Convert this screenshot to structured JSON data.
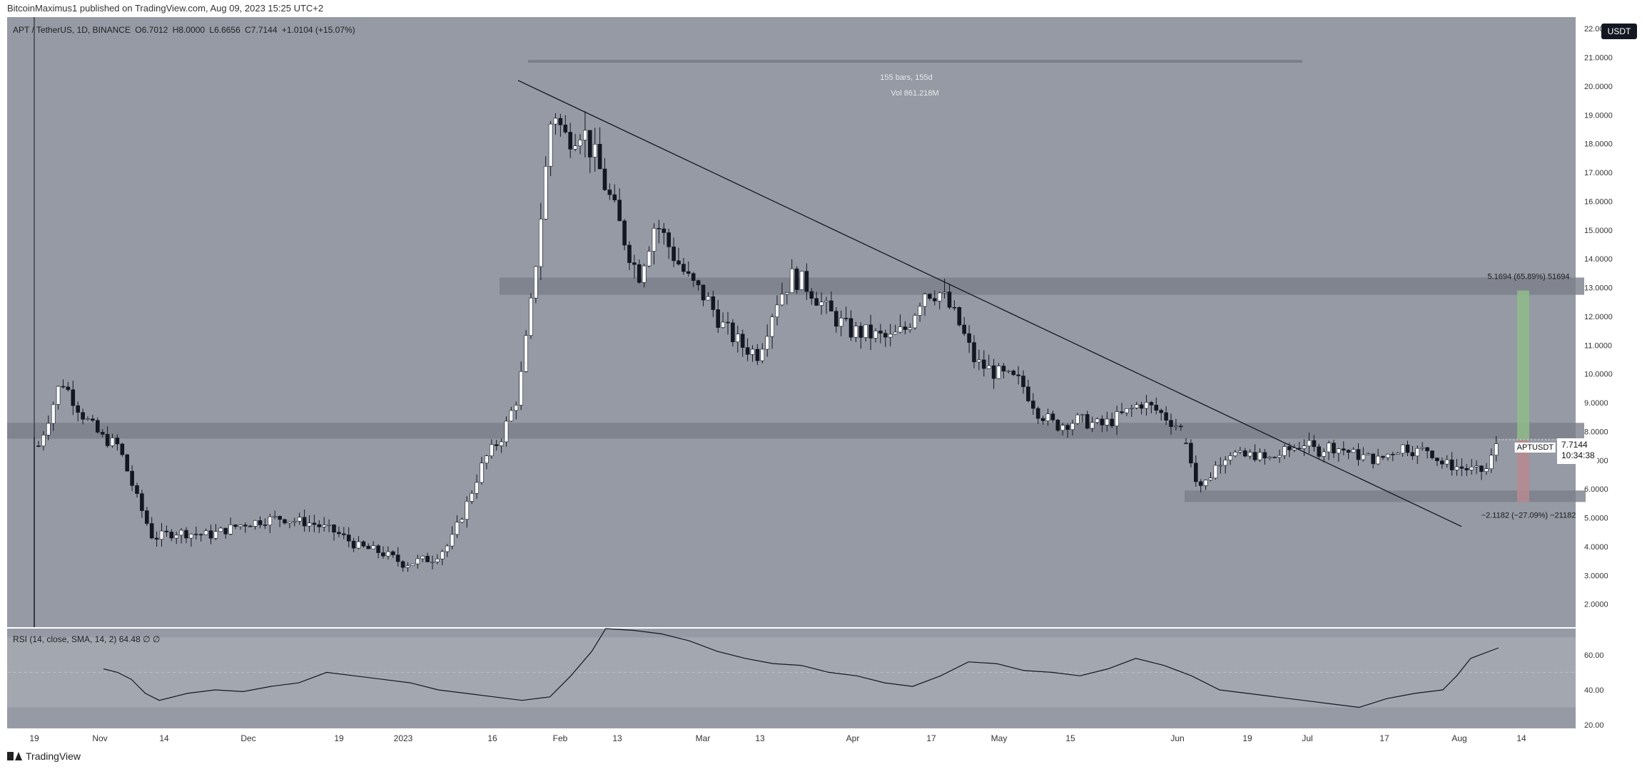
{
  "header": {
    "publisher": "BitcoinMaximus1 published on TradingView.com, Aug 09, 2023 15:25 UTC+2"
  },
  "symbol": {
    "name": "APT / TetherUS, 1D, BINANCE",
    "open": "O6.7012",
    "high": "H8.0000",
    "low": "L6.6656",
    "close": "C7.7144",
    "change": "+1.0104 (+15.07%)"
  },
  "currency_badge": "USDT",
  "price_label": {
    "pair": "APTUSDT",
    "price": "7.7144",
    "countdown": "10:34:38"
  },
  "measure": {
    "bars": "155 bars, 155d",
    "vol": "Vol 861.218M"
  },
  "projection": {
    "up": "5.1694 (65.89%) 51694",
    "down": "−2.1182 (−27.09%) −21182"
  },
  "rsi": {
    "label": "RSI (14, close, SMA, 14, 2)",
    "value": "64.48",
    "extra": "∅ ∅"
  },
  "footer": {
    "brand": "TradingView"
  },
  "colors": {
    "background": "#959aa4",
    "bull": "#ffffff",
    "bear": "#131722",
    "zone": "#7a7e88",
    "up_box": "#8fbb8a",
    "down_box": "#b98a90"
  },
  "chart_data": {
    "type": "candlestick",
    "title": "APT / TetherUS, 1D, BINANCE",
    "y_ticks": [
      "22.0000",
      "21.0000",
      "20.0000",
      "19.0000",
      "18.0000",
      "17.0000",
      "16.0000",
      "15.0000",
      "14.0000",
      "13.0000",
      "12.0000",
      "11.0000",
      "10.0000",
      "9.0000",
      "8.0000",
      "7.0000",
      "6.0000",
      "5.0000",
      "4.0000",
      "3.0000",
      "2.0000"
    ],
    "x_ticks": [
      "19",
      "Nov",
      "14",
      "Dec",
      "19",
      "2023",
      "16",
      "Feb",
      "13",
      "Mar",
      "13",
      "Apr",
      "17",
      "May",
      "15",
      "Jun",
      "19",
      "Jul",
      "17",
      "Aug",
      "14"
    ],
    "ylim": [
      1.2,
      22.4
    ],
    "rsi_ticks": [
      "60.00",
      "40.00",
      "20.00"
    ],
    "rsi_ylim": [
      18,
      75
    ],
    "resistance_zones": [
      [
        12.75,
        13.35
      ],
      [
        7.75,
        8.3
      ],
      [
        5.55,
        5.95
      ]
    ],
    "trendline": [
      [
        0,
        20.2
      ],
      [
        1,
        4.7
      ]
    ],
    "last_close": 7.7144,
    "projection_range": [
      5.55,
      7.71,
      12.9
    ],
    "price_path": [
      [
        0,
        7.5
      ],
      [
        0.02,
        9.8
      ],
      [
        0.04,
        8.5
      ],
      [
        0.055,
        7.8
      ],
      [
        0.07,
        7.5
      ],
      [
        0.085,
        5.8
      ],
      [
        0.1,
        4.3
      ],
      [
        0.12,
        4.5
      ],
      [
        0.15,
        4.4
      ],
      [
        0.18,
        4.8
      ],
      [
        0.21,
        5.0
      ],
      [
        0.24,
        4.8
      ],
      [
        0.26,
        4.5
      ],
      [
        0.28,
        4.0
      ],
      [
        0.3,
        3.8
      ],
      [
        0.32,
        3.4
      ],
      [
        0.345,
        3.6
      ],
      [
        0.36,
        4.1
      ],
      [
        0.375,
        5.5
      ],
      [
        0.39,
        7.0
      ],
      [
        0.405,
        7.8
      ],
      [
        0.42,
        9.3
      ],
      [
        0.43,
        12.0
      ],
      [
        0.445,
        17.5
      ],
      [
        0.45,
        19.4
      ],
      [
        0.46,
        18.2
      ],
      [
        0.475,
        18.6
      ],
      [
        0.49,
        17.2
      ],
      [
        0.51,
        15.0
      ],
      [
        0.525,
        13.4
      ],
      [
        0.54,
        15.3
      ],
      [
        0.555,
        14.2
      ],
      [
        0.57,
        13.2
      ],
      [
        0.585,
        12.6
      ],
      [
        0.6,
        11.6
      ],
      [
        0.615,
        11.0
      ],
      [
        0.63,
        10.7
      ],
      [
        0.645,
        12.5
      ],
      [
        0.66,
        13.4
      ],
      [
        0.675,
        13.0
      ],
      [
        0.69,
        12.2
      ],
      [
        0.71,
        11.5
      ],
      [
        0.725,
        11.4
      ],
      [
        0.745,
        11.2
      ],
      [
        0.76,
        11.6
      ],
      [
        0.775,
        12.9
      ],
      [
        0.79,
        12.8
      ],
      [
        0.805,
        11.8
      ],
      [
        0.82,
        10.4
      ],
      [
        0.84,
        10.0
      ],
      [
        0.86,
        9.7
      ],
      [
        0.875,
        8.7
      ],
      [
        0.89,
        8.2
      ],
      [
        0.91,
        8.4
      ],
      [
        0.93,
        8.2
      ],
      [
        0.95,
        8.6
      ],
      [
        0.965,
        9.0
      ],
      [
        0.98,
        8.7
      ],
      [
        1.0,
        8.1
      ]
    ],
    "price_path_2": [
      [
        0,
        7.6
      ],
      [
        0.04,
        6.1
      ],
      [
        0.07,
        6.3
      ],
      [
        0.1,
        6.9
      ],
      [
        0.14,
        7.3
      ],
      [
        0.18,
        7.1
      ],
      [
        0.22,
        7.2
      ],
      [
        0.26,
        7.0
      ],
      [
        0.3,
        7.2
      ],
      [
        0.34,
        7.4
      ],
      [
        0.38,
        7.6
      ],
      [
        0.42,
        7.3
      ],
      [
        0.46,
        7.5
      ],
      [
        0.5,
        7.4
      ],
      [
        0.54,
        7.2
      ],
      [
        0.58,
        7.1
      ],
      [
        0.62,
        7.0
      ],
      [
        0.66,
        7.3
      ],
      [
        0.7,
        7.5
      ],
      [
        0.74,
        7.3
      ],
      [
        0.78,
        7.4
      ],
      [
        0.82,
        6.9
      ],
      [
        0.86,
        6.8
      ],
      [
        0.9,
        6.7
      ],
      [
        0.94,
        6.6
      ],
      [
        0.97,
        6.7
      ],
      [
        1.0,
        7.7
      ]
    ],
    "rsi_path": [
      [
        0,
        52
      ],
      [
        0.01,
        50
      ],
      [
        0.02,
        46
      ],
      [
        0.03,
        38
      ],
      [
        0.04,
        34
      ],
      [
        0.06,
        38
      ],
      [
        0.08,
        40
      ],
      [
        0.1,
        39
      ],
      [
        0.12,
        42
      ],
      [
        0.14,
        44
      ],
      [
        0.16,
        50
      ],
      [
        0.18,
        48
      ],
      [
        0.2,
        46
      ],
      [
        0.22,
        44
      ],
      [
        0.24,
        40
      ],
      [
        0.26,
        38
      ],
      [
        0.28,
        36
      ],
      [
        0.3,
        34
      ],
      [
        0.32,
        36
      ],
      [
        0.335,
        48
      ],
      [
        0.35,
        62
      ],
      [
        0.36,
        75
      ],
      [
        0.38,
        74
      ],
      [
        0.4,
        72
      ],
      [
        0.42,
        68
      ],
      [
        0.44,
        62
      ],
      [
        0.46,
        58
      ],
      [
        0.48,
        55
      ],
      [
        0.5,
        54
      ],
      [
        0.52,
        50
      ],
      [
        0.54,
        48
      ],
      [
        0.56,
        44
      ],
      [
        0.58,
        42
      ],
      [
        0.6,
        48
      ],
      [
        0.62,
        56
      ],
      [
        0.64,
        55
      ],
      [
        0.66,
        51
      ],
      [
        0.68,
        50
      ],
      [
        0.7,
        48
      ],
      [
        0.72,
        52
      ],
      [
        0.74,
        58
      ],
      [
        0.76,
        54
      ],
      [
        0.78,
        48
      ],
      [
        0.8,
        40
      ],
      [
        0.82,
        38
      ],
      [
        0.84,
        36
      ],
      [
        0.86,
        34
      ],
      [
        0.88,
        32
      ],
      [
        0.9,
        30
      ],
      [
        0.92,
        35
      ],
      [
        0.94,
        38
      ],
      [
        0.96,
        40
      ],
      [
        0.97,
        48
      ],
      [
        0.98,
        58
      ],
      [
        1.0,
        64
      ]
    ]
  }
}
